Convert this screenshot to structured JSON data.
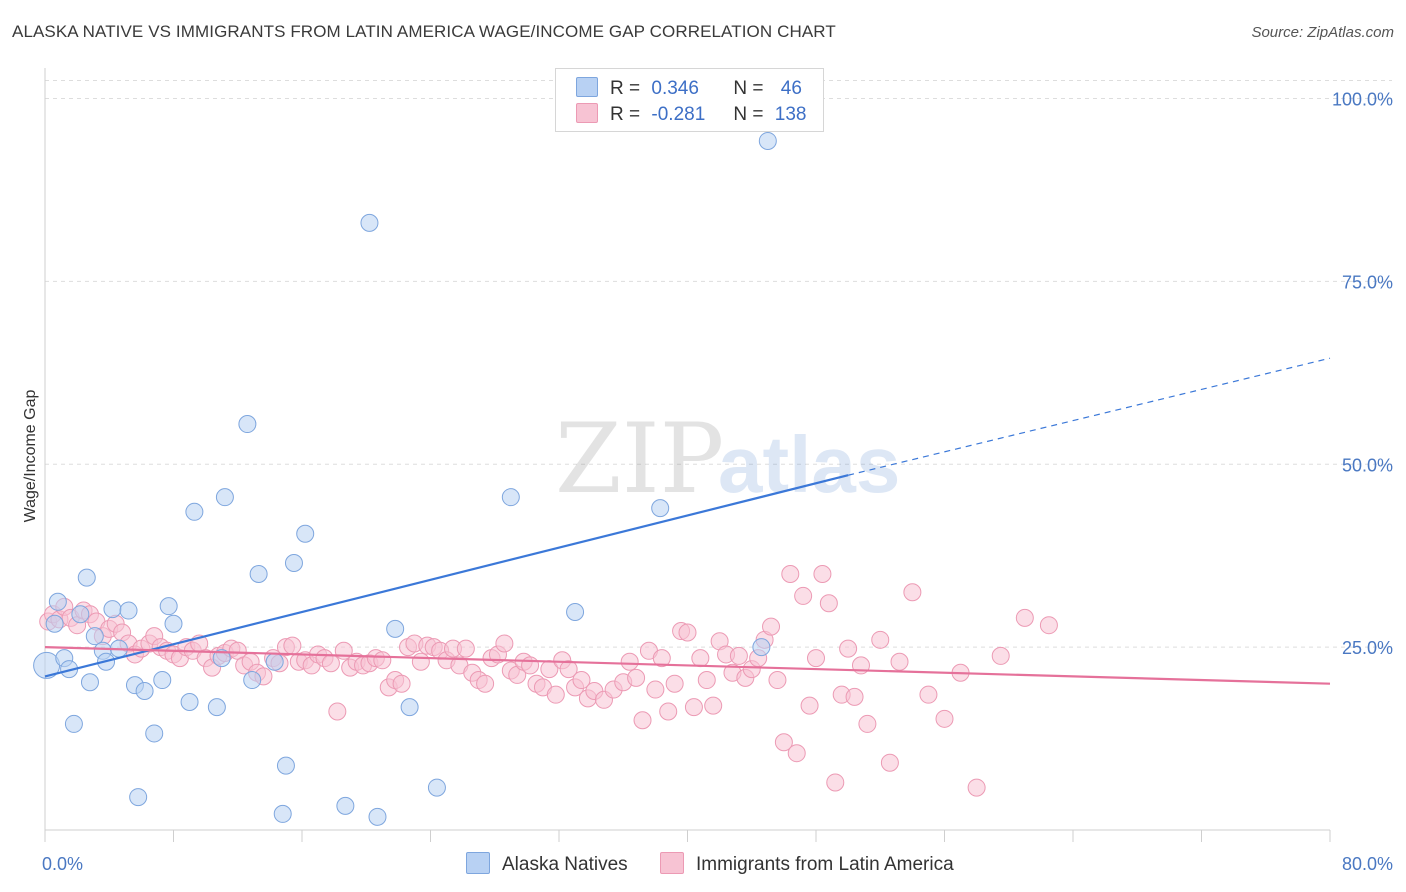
{
  "title": "ALASKA NATIVE VS IMMIGRANTS FROM LATIN AMERICA WAGE/INCOME GAP CORRELATION CHART",
  "source": "Source: ZipAtlas.com",
  "watermark": {
    "part1": "ZIP",
    "part2": "atlas"
  },
  "colors": {
    "blue_fill": "#b8d1f3",
    "blue_stroke": "#7ea6de",
    "blue_line": "#3b78d8",
    "pink_fill": "#f7c3d3",
    "pink_stroke": "#ec9ab4",
    "pink_line": "#e5719a",
    "grid": "#dddddd",
    "tick_text": "#4a78c2"
  },
  "legend": {
    "r_label": "R =",
    "n_label": "N =",
    "rows": [
      {
        "r": "0.346",
        "n": "46"
      },
      {
        "r": "-0.281",
        "n": "138"
      }
    ]
  },
  "chart_data": {
    "type": "scatter",
    "title": "ALASKA NATIVE VS IMMIGRANTS FROM LATIN AMERICA WAGE/INCOME GAP CORRELATION CHART",
    "xlabel": "",
    "ylabel": "Wage/Income Gap",
    "xlim": [
      0,
      80
    ],
    "ylim": [
      0,
      100
    ],
    "x_tick_labels": [
      "0.0%",
      "80.0%"
    ],
    "y_ticks": [
      25,
      50,
      75,
      100
    ],
    "y_tick_labels": [
      "25.0%",
      "50.0%",
      "75.0%",
      "100.0%"
    ],
    "grid": true,
    "legend_position": "top-center",
    "series": [
      {
        "name": "Alaska Natives",
        "color": "#b8d1f3",
        "trend": {
          "x": [
            0,
            50
          ],
          "y": [
            21,
            48.5
          ],
          "dashed_to": [
            80,
            64.5
          ]
        },
        "points": [
          [
            0.1,
            22.5
          ],
          [
            0.6,
            28.2
          ],
          [
            0.8,
            31.2
          ],
          [
            1.2,
            23.5
          ],
          [
            1.5,
            22.0
          ],
          [
            1.8,
            14.5
          ],
          [
            2.2,
            29.5
          ],
          [
            2.6,
            34.5
          ],
          [
            2.8,
            20.2
          ],
          [
            3.1,
            26.5
          ],
          [
            3.6,
            24.5
          ],
          [
            3.8,
            23.0
          ],
          [
            4.2,
            30.2
          ],
          [
            4.6,
            24.8
          ],
          [
            5.2,
            30.0
          ],
          [
            5.6,
            19.8
          ],
          [
            5.8,
            4.5
          ],
          [
            6.2,
            19.0
          ],
          [
            6.8,
            13.2
          ],
          [
            7.3,
            20.5
          ],
          [
            7.7,
            30.6
          ],
          [
            8.0,
            28.2
          ],
          [
            9.0,
            17.5
          ],
          [
            9.3,
            43.5
          ],
          [
            10.7,
            16.8
          ],
          [
            11.0,
            23.5
          ],
          [
            11.2,
            45.5
          ],
          [
            12.6,
            55.5
          ],
          [
            12.9,
            20.5
          ],
          [
            13.3,
            35.0
          ],
          [
            14.3,
            23.0
          ],
          [
            14.8,
            2.2
          ],
          [
            15.0,
            8.8
          ],
          [
            15.5,
            36.5
          ],
          [
            16.2,
            40.5
          ],
          [
            18.7,
            3.3
          ],
          [
            20.2,
            83.0
          ],
          [
            20.7,
            1.8
          ],
          [
            21.8,
            27.5
          ],
          [
            22.7,
            16.8
          ],
          [
            24.4,
            5.8
          ],
          [
            29.0,
            45.5
          ],
          [
            33.0,
            29.8
          ],
          [
            38.3,
            44.0
          ],
          [
            44.6,
            25.0
          ],
          [
            45.0,
            94.2
          ]
        ]
      },
      {
        "name": "Immigrants from Latin America",
        "color": "#f7c3d3",
        "trend": {
          "x": [
            0,
            80
          ],
          "y": [
            25,
            20
          ]
        },
        "points": [
          [
            0.2,
            28.5
          ],
          [
            0.5,
            29.5
          ],
          [
            0.9,
            28.8
          ],
          [
            1.2,
            30.5
          ],
          [
            1.6,
            29.0
          ],
          [
            2.0,
            28.0
          ],
          [
            2.4,
            30.0
          ],
          [
            2.8,
            29.5
          ],
          [
            3.2,
            28.5
          ],
          [
            3.6,
            26.5
          ],
          [
            4.0,
            27.5
          ],
          [
            4.4,
            28.2
          ],
          [
            4.8,
            27.0
          ],
          [
            5.2,
            25.5
          ],
          [
            5.6,
            24.0
          ],
          [
            6.0,
            24.8
          ],
          [
            6.5,
            25.5
          ],
          [
            6.8,
            26.5
          ],
          [
            7.2,
            25.0
          ],
          [
            7.6,
            24.5
          ],
          [
            8.0,
            24.0
          ],
          [
            8.4,
            23.5
          ],
          [
            8.8,
            25.0
          ],
          [
            9.2,
            24.5
          ],
          [
            9.6,
            25.5
          ],
          [
            10.0,
            23.5
          ],
          [
            10.4,
            22.2
          ],
          [
            10.8,
            23.8
          ],
          [
            11.2,
            24.2
          ],
          [
            11.6,
            24.8
          ],
          [
            12.0,
            24.5
          ],
          [
            12.4,
            22.5
          ],
          [
            12.8,
            23.0
          ],
          [
            13.2,
            21.5
          ],
          [
            13.6,
            21.0
          ],
          [
            14.2,
            23.5
          ],
          [
            14.6,
            22.8
          ],
          [
            15.0,
            25.0
          ],
          [
            15.4,
            25.2
          ],
          [
            15.8,
            23.0
          ],
          [
            16.2,
            23.2
          ],
          [
            16.6,
            22.5
          ],
          [
            17.0,
            24.0
          ],
          [
            17.4,
            23.5
          ],
          [
            17.8,
            22.8
          ],
          [
            18.2,
            16.2
          ],
          [
            18.6,
            24.5
          ],
          [
            19.0,
            22.2
          ],
          [
            19.4,
            23.0
          ],
          [
            19.8,
            22.5
          ],
          [
            20.2,
            22.8
          ],
          [
            20.6,
            23.5
          ],
          [
            21.0,
            23.2
          ],
          [
            21.4,
            19.5
          ],
          [
            21.8,
            20.5
          ],
          [
            22.2,
            20.0
          ],
          [
            22.6,
            25.0
          ],
          [
            23.0,
            25.5
          ],
          [
            23.4,
            23.0
          ],
          [
            23.8,
            25.2
          ],
          [
            24.2,
            25.0
          ],
          [
            24.6,
            24.5
          ],
          [
            25.0,
            23.2
          ],
          [
            25.4,
            24.8
          ],
          [
            25.8,
            22.5
          ],
          [
            26.2,
            24.8
          ],
          [
            26.6,
            21.5
          ],
          [
            27.0,
            20.5
          ],
          [
            27.4,
            20.0
          ],
          [
            27.8,
            23.5
          ],
          [
            28.2,
            24.0
          ],
          [
            28.6,
            25.5
          ],
          [
            29.0,
            21.8
          ],
          [
            29.4,
            21.2
          ],
          [
            29.8,
            23.0
          ],
          [
            30.2,
            22.5
          ],
          [
            30.6,
            20.0
          ],
          [
            31.0,
            19.5
          ],
          [
            31.4,
            22.0
          ],
          [
            31.8,
            18.5
          ],
          [
            32.2,
            23.2
          ],
          [
            32.6,
            22.0
          ],
          [
            33.0,
            19.5
          ],
          [
            33.4,
            20.5
          ],
          [
            33.8,
            18.0
          ],
          [
            34.2,
            19.0
          ],
          [
            34.8,
            17.8
          ],
          [
            35.4,
            19.2
          ],
          [
            36.0,
            20.2
          ],
          [
            36.4,
            23.0
          ],
          [
            36.8,
            20.8
          ],
          [
            37.2,
            15.0
          ],
          [
            37.6,
            24.5
          ],
          [
            38.0,
            19.2
          ],
          [
            38.4,
            23.5
          ],
          [
            38.8,
            16.2
          ],
          [
            39.2,
            20.0
          ],
          [
            39.6,
            27.2
          ],
          [
            40.0,
            27.0
          ],
          [
            40.4,
            16.8
          ],
          [
            40.8,
            23.5
          ],
          [
            41.2,
            20.5
          ],
          [
            41.6,
            17.0
          ],
          [
            42.0,
            25.8
          ],
          [
            42.4,
            24.0
          ],
          [
            42.8,
            21.5
          ],
          [
            43.2,
            23.8
          ],
          [
            43.6,
            20.8
          ],
          [
            44.0,
            22.0
          ],
          [
            44.4,
            23.5
          ],
          [
            44.8,
            26.0
          ],
          [
            45.2,
            27.8
          ],
          [
            45.6,
            20.5
          ],
          [
            46.0,
            12.0
          ],
          [
            46.4,
            35.0
          ],
          [
            46.8,
            10.5
          ],
          [
            47.2,
            32.0
          ],
          [
            47.6,
            17.0
          ],
          [
            48.0,
            23.5
          ],
          [
            48.4,
            35.0
          ],
          [
            48.8,
            31.0
          ],
          [
            49.2,
            6.5
          ],
          [
            49.6,
            18.5
          ],
          [
            50.0,
            24.8
          ],
          [
            50.4,
            18.2
          ],
          [
            50.8,
            22.5
          ],
          [
            51.2,
            14.5
          ],
          [
            52.0,
            26.0
          ],
          [
            52.6,
            9.2
          ],
          [
            53.2,
            23.0
          ],
          [
            54.0,
            32.5
          ],
          [
            55.0,
            18.5
          ],
          [
            56.0,
            15.2
          ],
          [
            57.0,
            21.5
          ],
          [
            58.0,
            5.8
          ],
          [
            59.5,
            23.8
          ],
          [
            61.0,
            29.0
          ],
          [
            62.5,
            28.0
          ]
        ]
      }
    ]
  },
  "bottom_legend": [
    "Alaska Natives",
    "Immigrants from Latin America"
  ]
}
